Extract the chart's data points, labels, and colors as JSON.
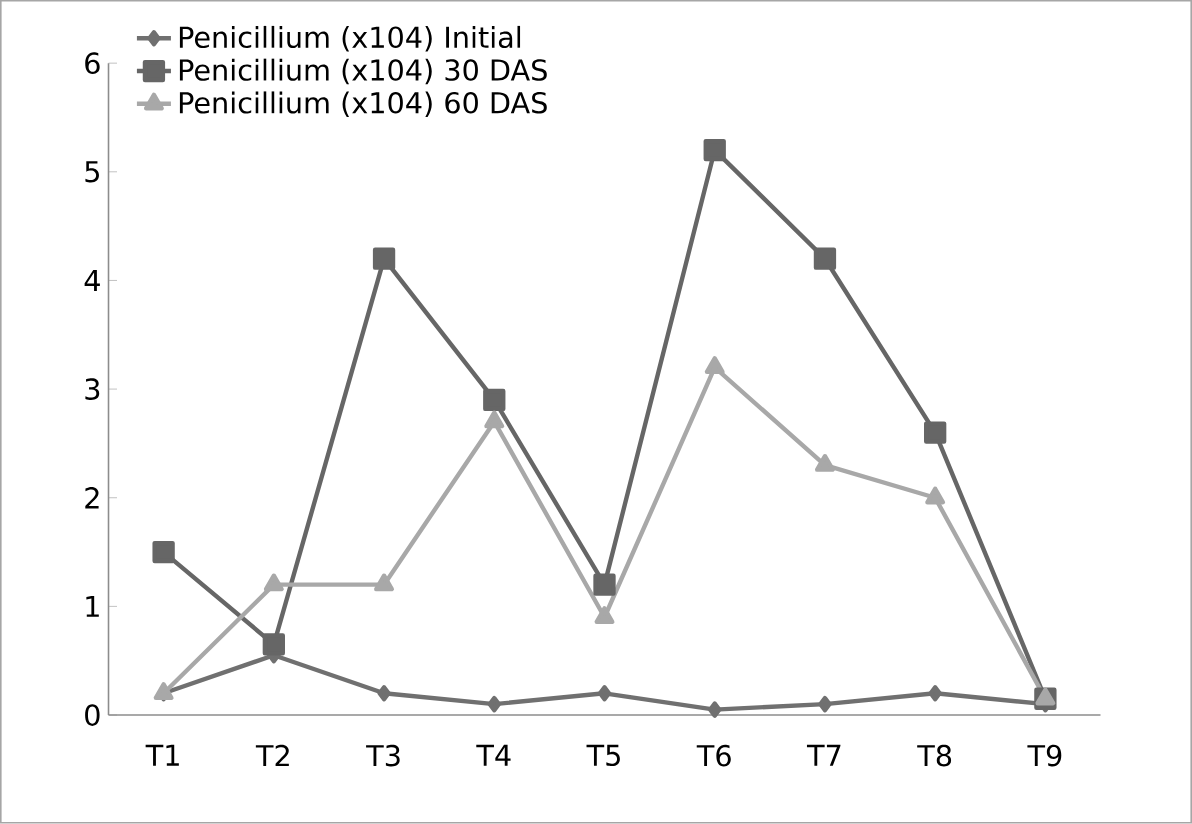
{
  "chart_data": {
    "type": "line",
    "categories": [
      "T1",
      "T2",
      "T3",
      "T4",
      "T5",
      "T6",
      "T7",
      "T8",
      "T9"
    ],
    "series": [
      {
        "name": "Penicillium (x104)  Initial",
        "color": "#707070",
        "marker": "diamond",
        "values": [
          0.2,
          0.55,
          0.2,
          0.1,
          0.2,
          0.05,
          0.1,
          0.2,
          0.1
        ]
      },
      {
        "name": "Penicillium (x104)  30 DAS",
        "color": "#666666",
        "marker": "square",
        "values": [
          1.5,
          0.65,
          4.2,
          2.9,
          1.2,
          5.2,
          4.2,
          2.6,
          0.15
        ]
      },
      {
        "name": "Penicillium (x104)  60 DAS",
        "color": "#a8a8a8",
        "marker": "triangle",
        "values": [
          0.2,
          1.2,
          1.2,
          2.7,
          0.9,
          3.2,
          2.3,
          2.0,
          0.15
        ]
      }
    ],
    "ylim": [
      0,
      6
    ],
    "yticks": [
      0,
      1,
      2,
      3,
      4,
      5,
      6
    ],
    "grid": false,
    "legend": "top left"
  }
}
